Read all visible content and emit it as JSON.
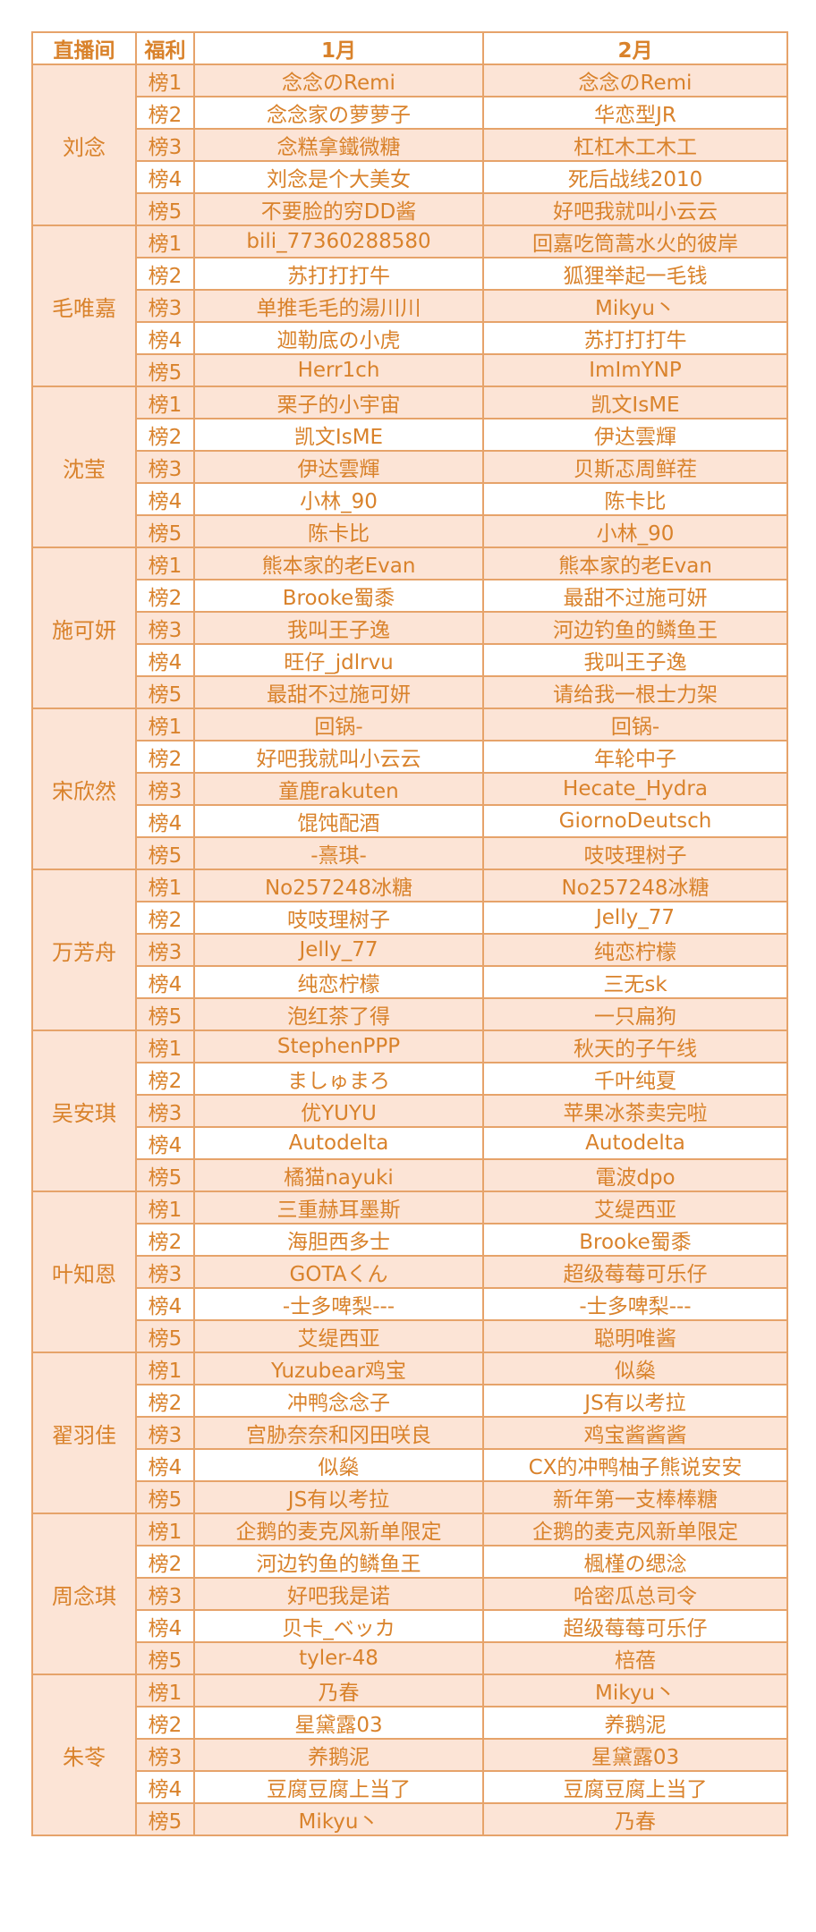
{
  "headers": {
    "host": "直播间",
    "perk": "福利",
    "month1": "1月",
    "month2": "2月"
  },
  "colors": {
    "text": "#d9822b",
    "border": "#e6a36a",
    "shade": "#fce4d6"
  },
  "groups": [
    {
      "host": "刘念",
      "rows": [
        {
          "rank": "榜1",
          "m1": "念念のRemi",
          "m2": "念念のRemi"
        },
        {
          "rank": "榜2",
          "m1": "念念家の萝萝子",
          "m2": "华恋型JR"
        },
        {
          "rank": "榜3",
          "m1": "念糕拿鐵微糖",
          "m2": "杠杠木工木工"
        },
        {
          "rank": "榜4",
          "m1": "刘念是个大美女",
          "m2": "死后战线2010"
        },
        {
          "rank": "榜5",
          "m1": "不要脸的穷DD酱",
          "m2": "好吧我就叫小云云"
        }
      ]
    },
    {
      "host": "毛唯嘉",
      "rows": [
        {
          "rank": "榜1",
          "m1": "bili_77360288580",
          "m2": "回嘉吃筒蒿水火的彼岸"
        },
        {
          "rank": "榜2",
          "m1": "苏打打打牛",
          "m2": "狐狸举起一毛钱"
        },
        {
          "rank": "榜3",
          "m1": "单推毛毛的湯川川",
          "m2": "Mikyu丶"
        },
        {
          "rank": "榜4",
          "m1": "迦勒底の小虎",
          "m2": "苏打打打牛"
        },
        {
          "rank": "榜5",
          "m1": "Herr1ch",
          "m2": "ImImYNP"
        }
      ]
    },
    {
      "host": "沈莹",
      "rows": [
        {
          "rank": "榜1",
          "m1": "栗子的小宇宙",
          "m2": "凯文IsME"
        },
        {
          "rank": "榜2",
          "m1": "凯文IsME",
          "m2": "伊达雲輝"
        },
        {
          "rank": "榜3",
          "m1": "伊达雲輝",
          "m2": "贝斯忑周鲜茬"
        },
        {
          "rank": "榜4",
          "m1": "小林_90",
          "m2": "陈卡比"
        },
        {
          "rank": "榜5",
          "m1": "陈卡比",
          "m2": "小林_90"
        }
      ]
    },
    {
      "host": "施可妍",
      "rows": [
        {
          "rank": "榜1",
          "m1": "熊本家的老Evan",
          "m2": "熊本家的老Evan"
        },
        {
          "rank": "榜2",
          "m1": "Brooke蜀黍",
          "m2": "最甜不过施可妍"
        },
        {
          "rank": "榜3",
          "m1": "我叫王子逸",
          "m2": "河边钓鱼的鳞鱼王"
        },
        {
          "rank": "榜4",
          "m1": "旺仔_jdlrvu",
          "m2": "我叫王子逸"
        },
        {
          "rank": "榜5",
          "m1": "最甜不过施可妍",
          "m2": "请给我一根士力架"
        }
      ]
    },
    {
      "host": "宋欣然",
      "rows": [
        {
          "rank": "榜1",
          "m1": "回锅-",
          "m2": "回锅-"
        },
        {
          "rank": "榜2",
          "m1": "好吧我就叫小云云",
          "m2": "年轮中子"
        },
        {
          "rank": "榜3",
          "m1": "童鹿rakuten",
          "m2": "Hecate_Hydra"
        },
        {
          "rank": "榜4",
          "m1": "馄饨配酒",
          "m2": "GiornoDeutsch"
        },
        {
          "rank": "榜5",
          "m1": "-熹琪-",
          "m2": "吱吱理树子"
        }
      ]
    },
    {
      "host": "万芳舟",
      "rows": [
        {
          "rank": "榜1",
          "m1": "No257248冰糖",
          "m2": "No257248冰糖"
        },
        {
          "rank": "榜2",
          "m1": "吱吱理树子",
          "m2": "Jelly_77"
        },
        {
          "rank": "榜3",
          "m1": "Jelly_77",
          "m2": "纯恋柠檬"
        },
        {
          "rank": "榜4",
          "m1": "纯恋柠檬",
          "m2": "三无sk"
        },
        {
          "rank": "榜5",
          "m1": "泡红茶了得",
          "m2": "一只扁狗"
        }
      ]
    },
    {
      "host": "吴安琪",
      "rows": [
        {
          "rank": "榜1",
          "m1": "StephenPPP",
          "m2": "秋天的子午线"
        },
        {
          "rank": "榜2",
          "m1": "ましゅまろ",
          "m2": "千叶纯夏"
        },
        {
          "rank": "榜3",
          "m1": "优YUYU",
          "m2": "苹果冰茶卖完啦"
        },
        {
          "rank": "榜4",
          "m1": "Autodelta",
          "m2": "Autodelta"
        },
        {
          "rank": "榜5",
          "m1": "橘猫nayuki",
          "m2": "電波dpo"
        }
      ]
    },
    {
      "host": "叶知恩",
      "rows": [
        {
          "rank": "榜1",
          "m1": "三重赫耳墨斯",
          "m2": "艾缇西亚"
        },
        {
          "rank": "榜2",
          "m1": "海胆西多士",
          "m2": "Brooke蜀黍"
        },
        {
          "rank": "榜3",
          "m1": "GOTAくん",
          "m2": "超级莓莓可乐仔"
        },
        {
          "rank": "榜4",
          "m1": "-士多啤梨---",
          "m2": "-士多啤梨---"
        },
        {
          "rank": "榜5",
          "m1": "艾缇西亚",
          "m2": "聪明唯酱"
        }
      ]
    },
    {
      "host": "翟羽佳",
      "rows": [
        {
          "rank": "榜1",
          "m1": "Yuzubear鸡宝",
          "m2": "似燊"
        },
        {
          "rank": "榜2",
          "m1": "冲鸭念念子",
          "m2": "JS有以考拉"
        },
        {
          "rank": "榜3",
          "m1": "宫胁奈奈和冈田咲良",
          "m2": "鸡宝酱酱酱"
        },
        {
          "rank": "榜4",
          "m1": "似燊",
          "m2": "CX的冲鸭柚子熊说安安"
        },
        {
          "rank": "榜5",
          "m1": "JS有以考拉",
          "m2": "新年第一支棒棒糖"
        }
      ]
    },
    {
      "host": "周念琪",
      "rows": [
        {
          "rank": "榜1",
          "m1": "企鹅的麦克风新单限定",
          "m2": "企鹅的麦克风新单限定"
        },
        {
          "rank": "榜2",
          "m1": "河边钓鱼的鳞鱼王",
          "m2": "楓槿の缌淰"
        },
        {
          "rank": "榜3",
          "m1": "好吧我是诺",
          "m2": "哈密瓜总司令"
        },
        {
          "rank": "榜4",
          "m1": "贝卡_ベッカ",
          "m2": "超级莓莓可乐仔"
        },
        {
          "rank": "榜5",
          "m1": "tyler-48",
          "m2": "棓蓓"
        }
      ]
    },
    {
      "host": "朱苓",
      "rows": [
        {
          "rank": "榜1",
          "m1": "乃春",
          "m2": "Mikyu丶"
        },
        {
          "rank": "榜2",
          "m1": "星黛露03",
          "m2": "养鹅泥"
        },
        {
          "rank": "榜3",
          "m1": "养鹅泥",
          "m2": "星黛露03"
        },
        {
          "rank": "榜4",
          "m1": "豆腐豆腐上当了",
          "m2": "豆腐豆腐上当了"
        },
        {
          "rank": "榜5",
          "m1": "Mikyu丶",
          "m2": "乃春"
        }
      ]
    }
  ]
}
